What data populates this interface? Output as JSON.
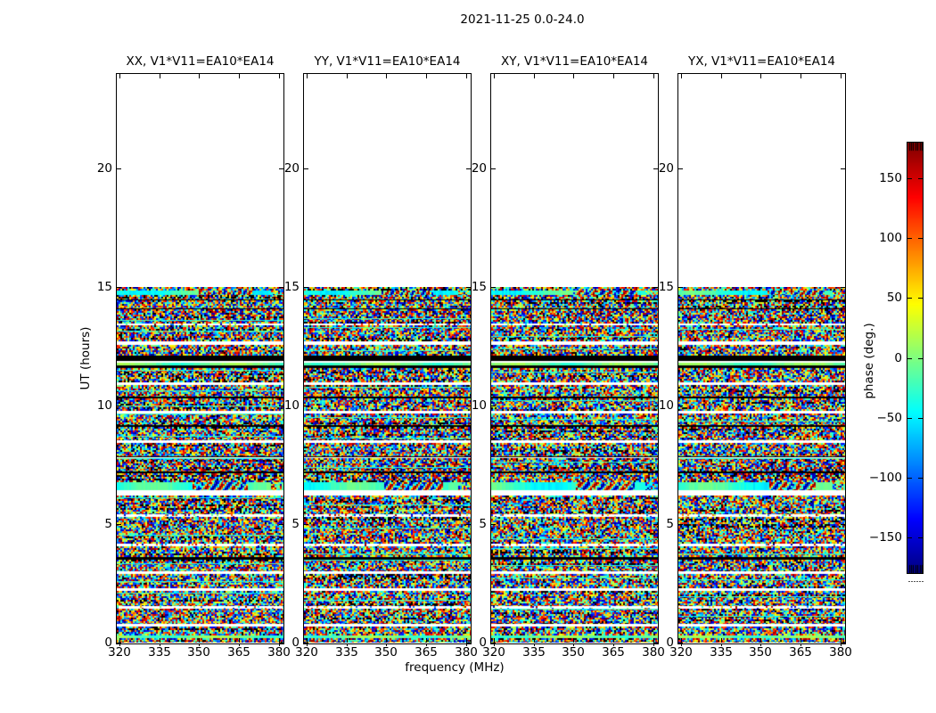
{
  "figure_title": "2021-11-25 0.0-24.0",
  "chart_data": {
    "type": "heatmap",
    "title": "2021-11-25 0.0-24.0",
    "xlabel": "frequency (MHz)",
    "ylabel": "UT (hours)",
    "x_ticks": [
      "320",
      "335",
      "350",
      "365",
      "380"
    ],
    "x_range_mhz": [
      319,
      382
    ],
    "y_ticks": [
      "0",
      "5",
      "10",
      "15",
      "20"
    ],
    "y_range_hours": [
      0,
      24
    ],
    "data_extent_ut_hours": [
      0,
      15
    ],
    "grid": false,
    "panels": [
      {
        "label": "XX, V1*V11=EA10*EA14",
        "polarization": "XX",
        "baseline": "V1*V11=EA10*EA14",
        "seed": 101
      },
      {
        "label": "YY, V1*V11=EA10*EA14",
        "polarization": "YY",
        "baseline": "V1*V11=EA10*EA14",
        "seed": 202
      },
      {
        "label": "XY, V1*V11=EA10*EA14",
        "polarization": "XY",
        "baseline": "V1*V11=EA10*EA14",
        "seed": 303
      },
      {
        "label": "YX, V1*V11=EA10*EA14",
        "polarization": "YX",
        "baseline": "V1*V11=EA10*EA14",
        "seed": 404
      }
    ],
    "colorbar": {
      "label": "phase (deg.)",
      "tick_values": [
        150,
        100,
        50,
        0,
        -50,
        -100,
        -150
      ],
      "tick_labels": [
        "150",
        "100",
        "50",
        "0",
        "−50",
        "−100",
        "−150"
      ],
      "range_deg": [
        -180,
        180
      ],
      "colormap": "jet",
      "position": "right"
    },
    "bands": [
      [
        4,
        "n"
      ],
      [
        5,
        "s2"
      ],
      [
        5,
        "n"
      ],
      [
        1,
        "b"
      ],
      [
        9,
        "n"
      ],
      [
        1,
        "b"
      ],
      [
        16,
        "g"
      ],
      [
        2,
        "wl"
      ],
      [
        18,
        "n"
      ],
      [
        4,
        "w"
      ],
      [
        12,
        "n"
      ],
      [
        6,
        "b"
      ],
      [
        2,
        "w"
      ],
      [
        3,
        "s"
      ],
      [
        3,
        "b"
      ],
      [
        16,
        "n"
      ],
      [
        3,
        "w"
      ],
      [
        13,
        "n"
      ],
      [
        2,
        "b"
      ],
      [
        14,
        "n"
      ],
      [
        3,
        "w"
      ],
      [
        13,
        "n"
      ],
      [
        2,
        "b"
      ],
      [
        15,
        "n"
      ],
      [
        3,
        "w"
      ],
      [
        15,
        "n"
      ],
      [
        2,
        "bw"
      ],
      [
        15,
        "g"
      ],
      [
        2,
        "b"
      ],
      [
        10,
        "g"
      ],
      [
        9,
        "s2"
      ],
      [
        6,
        "w"
      ],
      [
        21,
        "n"
      ],
      [
        3,
        "wl"
      ],
      [
        30,
        "n"
      ],
      [
        3,
        "wl"
      ],
      [
        12,
        "n"
      ],
      [
        3,
        "b"
      ],
      [
        13,
        "n"
      ],
      [
        3,
        "w"
      ],
      [
        16,
        "n"
      ],
      [
        3,
        "w"
      ],
      [
        17,
        "n"
      ],
      [
        3,
        "wl"
      ],
      [
        17,
        "n"
      ],
      [
        3,
        "w"
      ],
      [
        10,
        "n"
      ],
      [
        3,
        "s"
      ],
      [
        5,
        "n"
      ]
    ],
    "band_types_legend": {
      "n": "random wrapped-phase noise (uniform -180..180 deg)",
      "g": "noise with coherent interference fringes on right half",
      "w": "no data (white gap)",
      "wl": "white gap with sparse speckle",
      "b": "flagged solid black band",
      "bw": "black line over white gap",
      "s": "smooth low-phase green band",
      "s2": "smooth cyan/green band with rainbow fringe patch"
    }
  }
}
